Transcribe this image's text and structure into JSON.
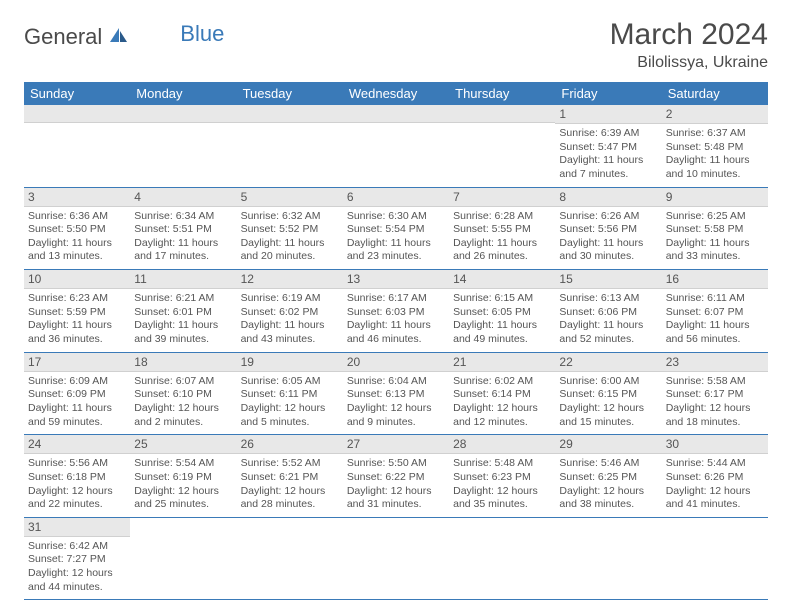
{
  "logo": {
    "general": "General",
    "blue": "Blue"
  },
  "title": "March 2024",
  "location": "Bilolissya, Ukraine",
  "colors": {
    "header_bg": "#3a7ab8",
    "header_text": "#ffffff",
    "daynum_bg": "#e8e8e8",
    "text": "#555555",
    "border": "#3a7ab8"
  },
  "day_headers": [
    "Sunday",
    "Monday",
    "Tuesday",
    "Wednesday",
    "Thursday",
    "Friday",
    "Saturday"
  ],
  "weeks": [
    [
      null,
      null,
      null,
      null,
      null,
      {
        "n": "1",
        "sr": "6:39 AM",
        "ss": "5:47 PM",
        "dl": "11 hours and 7 minutes."
      },
      {
        "n": "2",
        "sr": "6:37 AM",
        "ss": "5:48 PM",
        "dl": "11 hours and 10 minutes."
      }
    ],
    [
      {
        "n": "3",
        "sr": "6:36 AM",
        "ss": "5:50 PM",
        "dl": "11 hours and 13 minutes."
      },
      {
        "n": "4",
        "sr": "6:34 AM",
        "ss": "5:51 PM",
        "dl": "11 hours and 17 minutes."
      },
      {
        "n": "5",
        "sr": "6:32 AM",
        "ss": "5:52 PM",
        "dl": "11 hours and 20 minutes."
      },
      {
        "n": "6",
        "sr": "6:30 AM",
        "ss": "5:54 PM",
        "dl": "11 hours and 23 minutes."
      },
      {
        "n": "7",
        "sr": "6:28 AM",
        "ss": "5:55 PM",
        "dl": "11 hours and 26 minutes."
      },
      {
        "n": "8",
        "sr": "6:26 AM",
        "ss": "5:56 PM",
        "dl": "11 hours and 30 minutes."
      },
      {
        "n": "9",
        "sr": "6:25 AM",
        "ss": "5:58 PM",
        "dl": "11 hours and 33 minutes."
      }
    ],
    [
      {
        "n": "10",
        "sr": "6:23 AM",
        "ss": "5:59 PM",
        "dl": "11 hours and 36 minutes."
      },
      {
        "n": "11",
        "sr": "6:21 AM",
        "ss": "6:01 PM",
        "dl": "11 hours and 39 minutes."
      },
      {
        "n": "12",
        "sr": "6:19 AM",
        "ss": "6:02 PM",
        "dl": "11 hours and 43 minutes."
      },
      {
        "n": "13",
        "sr": "6:17 AM",
        "ss": "6:03 PM",
        "dl": "11 hours and 46 minutes."
      },
      {
        "n": "14",
        "sr": "6:15 AM",
        "ss": "6:05 PM",
        "dl": "11 hours and 49 minutes."
      },
      {
        "n": "15",
        "sr": "6:13 AM",
        "ss": "6:06 PM",
        "dl": "11 hours and 52 minutes."
      },
      {
        "n": "16",
        "sr": "6:11 AM",
        "ss": "6:07 PM",
        "dl": "11 hours and 56 minutes."
      }
    ],
    [
      {
        "n": "17",
        "sr": "6:09 AM",
        "ss": "6:09 PM",
        "dl": "11 hours and 59 minutes."
      },
      {
        "n": "18",
        "sr": "6:07 AM",
        "ss": "6:10 PM",
        "dl": "12 hours and 2 minutes."
      },
      {
        "n": "19",
        "sr": "6:05 AM",
        "ss": "6:11 PM",
        "dl": "12 hours and 5 minutes."
      },
      {
        "n": "20",
        "sr": "6:04 AM",
        "ss": "6:13 PM",
        "dl": "12 hours and 9 minutes."
      },
      {
        "n": "21",
        "sr": "6:02 AM",
        "ss": "6:14 PM",
        "dl": "12 hours and 12 minutes."
      },
      {
        "n": "22",
        "sr": "6:00 AM",
        "ss": "6:15 PM",
        "dl": "12 hours and 15 minutes."
      },
      {
        "n": "23",
        "sr": "5:58 AM",
        "ss": "6:17 PM",
        "dl": "12 hours and 18 minutes."
      }
    ],
    [
      {
        "n": "24",
        "sr": "5:56 AM",
        "ss": "6:18 PM",
        "dl": "12 hours and 22 minutes."
      },
      {
        "n": "25",
        "sr": "5:54 AM",
        "ss": "6:19 PM",
        "dl": "12 hours and 25 minutes."
      },
      {
        "n": "26",
        "sr": "5:52 AM",
        "ss": "6:21 PM",
        "dl": "12 hours and 28 minutes."
      },
      {
        "n": "27",
        "sr": "5:50 AM",
        "ss": "6:22 PM",
        "dl": "12 hours and 31 minutes."
      },
      {
        "n": "28",
        "sr": "5:48 AM",
        "ss": "6:23 PM",
        "dl": "12 hours and 35 minutes."
      },
      {
        "n": "29",
        "sr": "5:46 AM",
        "ss": "6:25 PM",
        "dl": "12 hours and 38 minutes."
      },
      {
        "n": "30",
        "sr": "5:44 AM",
        "ss": "6:26 PM",
        "dl": "12 hours and 41 minutes."
      }
    ],
    [
      {
        "n": "31",
        "sr": "6:42 AM",
        "ss": "7:27 PM",
        "dl": "12 hours and 44 minutes."
      },
      null,
      null,
      null,
      null,
      null,
      null
    ]
  ],
  "labels": {
    "sunrise": "Sunrise:",
    "sunset": "Sunset:",
    "daylight": "Daylight:"
  }
}
